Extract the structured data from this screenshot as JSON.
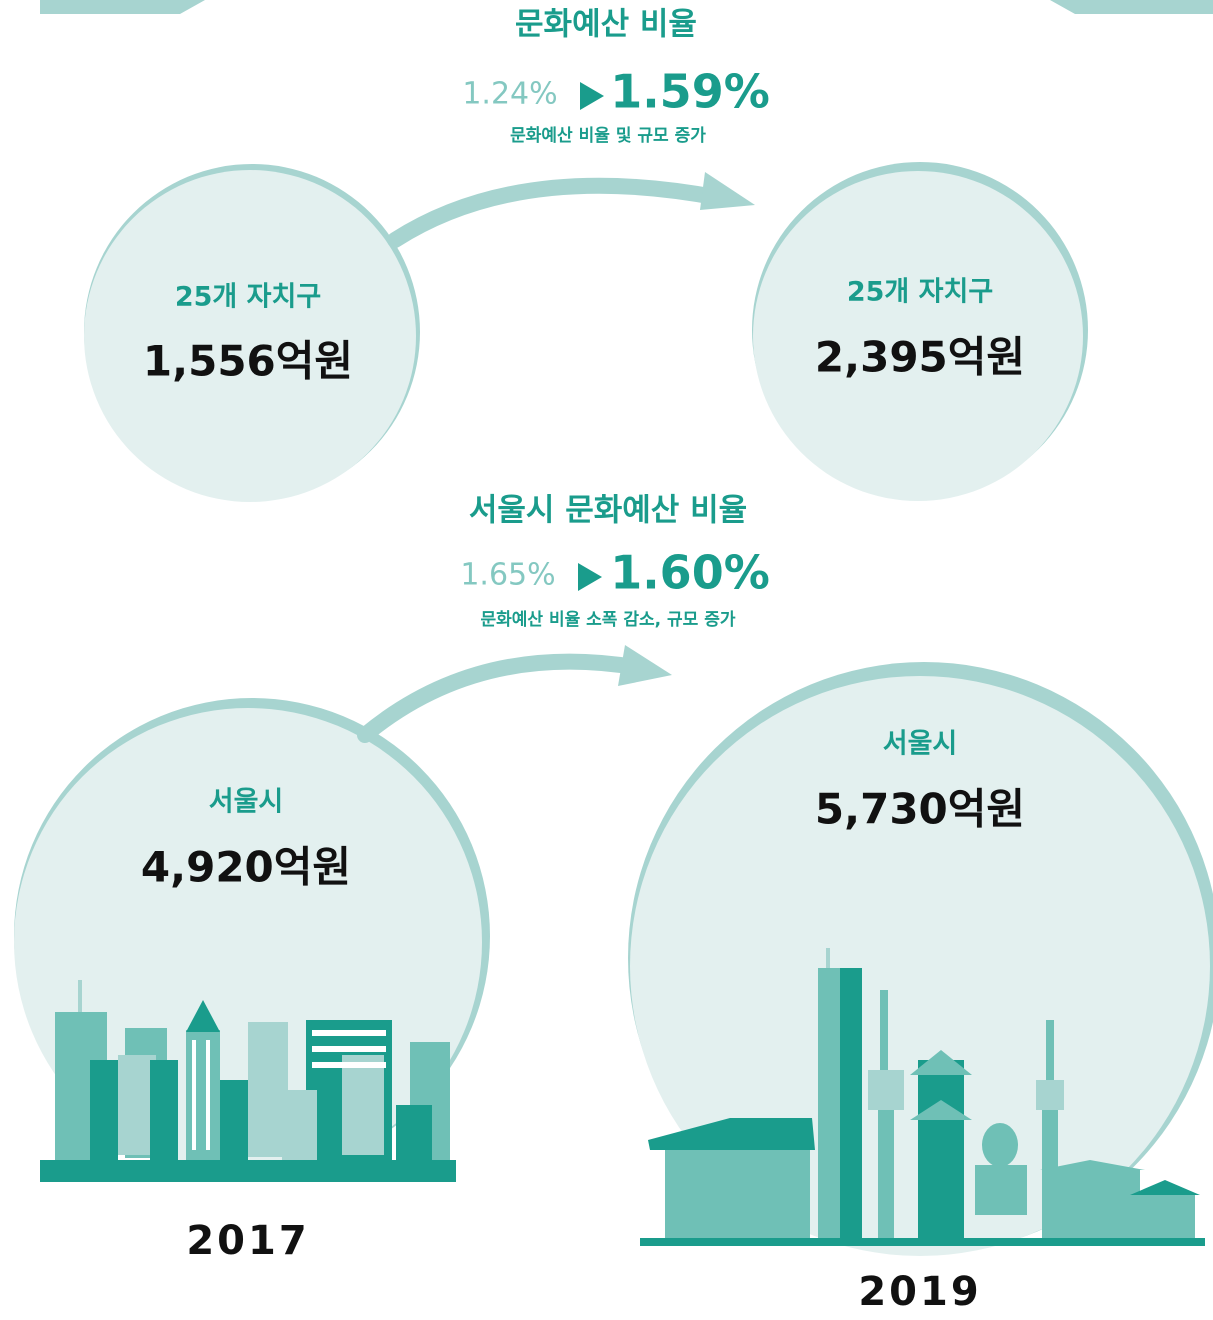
{
  "districts": {
    "title": "문화예산 비율",
    "ratio_before": "1.24%",
    "ratio_after": "1.59%",
    "note": "문화예산 비율 및 규모 증가",
    "before": {
      "label": "25개 자치구",
      "amount": "1,556억원"
    },
    "after": {
      "label": "25개 자치구",
      "amount": "2,395억원"
    }
  },
  "seoul": {
    "title": "서울시 문화예산 비율",
    "ratio_before": "1.65%",
    "ratio_after": "1.60%",
    "note": "문화예산 비율 소폭 감소, 규모 증가",
    "before": {
      "label": "서울시",
      "amount": "4,920억원"
    },
    "after": {
      "label": "서울시",
      "amount": "5,730억원"
    }
  },
  "years": {
    "before": "2017",
    "after": "2019"
  }
}
